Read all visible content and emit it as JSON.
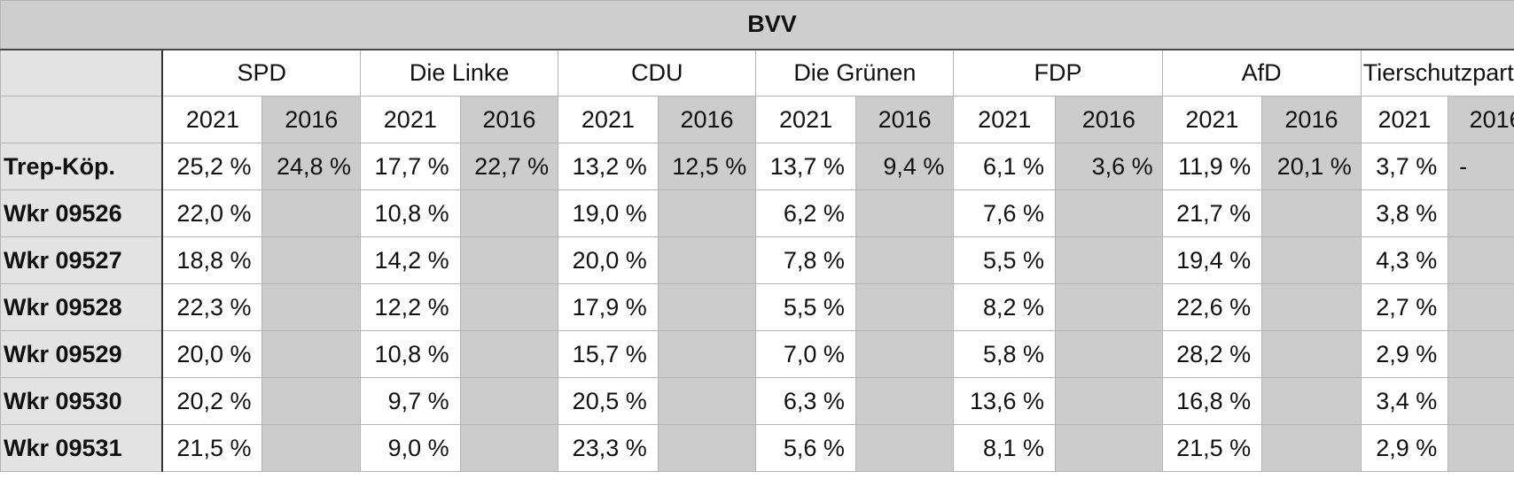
{
  "table": {
    "title": "BVV",
    "parties": [
      "SPD",
      "Die Linke",
      "CDU",
      "Die Grünen",
      "FDP",
      "AfD",
      "Tierschutzpartei"
    ],
    "years": [
      "2021",
      "2016"
    ],
    "rows": [
      {
        "label": "Trep-Köp.",
        "values": [
          "25,2 %",
          "24,8 %",
          "17,7 %",
          "22,7 %",
          "13,2 %",
          "12,5 %",
          "13,7 %",
          "9,4 %",
          "6,1 %",
          "3,6 %",
          "11,9 %",
          "20,1 %",
          "3,7 %",
          "-"
        ]
      },
      {
        "label": "Wkr 09526",
        "values": [
          "22,0 %",
          "",
          "10,8 %",
          "",
          "19,0 %",
          "",
          "6,2 %",
          "",
          "7,6 %",
          "",
          "21,7 %",
          "",
          "3,8 %",
          ""
        ]
      },
      {
        "label": "Wkr 09527",
        "values": [
          "18,8 %",
          "",
          "14,2 %",
          "",
          "20,0 %",
          "",
          "7,8 %",
          "",
          "5,5 %",
          "",
          "19,4 %",
          "",
          "4,3 %",
          ""
        ]
      },
      {
        "label": "Wkr 09528",
        "values": [
          "22,3 %",
          "",
          "12,2 %",
          "",
          "17,9 %",
          "",
          "5,5 %",
          "",
          "8,2 %",
          "",
          "22,6 %",
          "",
          "2,7 %",
          ""
        ]
      },
      {
        "label": "Wkr 09529",
        "values": [
          "20,0 %",
          "",
          "10,8 %",
          "",
          "15,7 %",
          "",
          "7,0 %",
          "",
          "5,8 %",
          "",
          "28,2 %",
          "",
          "2,9 %",
          ""
        ]
      },
      {
        "label": "Wkr 09530",
        "values": [
          "20,2 %",
          "",
          "9,7 %",
          "",
          "20,5 %",
          "",
          "6,3 %",
          "",
          "13,6 %",
          "",
          "16,8 %",
          "",
          "3,4 %",
          ""
        ]
      },
      {
        "label": "Wkr 09531",
        "values": [
          "21,5 %",
          "",
          "9,0 %",
          "",
          "23,3 %",
          "",
          "5,6 %",
          "",
          "8,1 %",
          "",
          "21,5 %",
          "",
          "2,9 %",
          ""
        ]
      }
    ]
  }
}
